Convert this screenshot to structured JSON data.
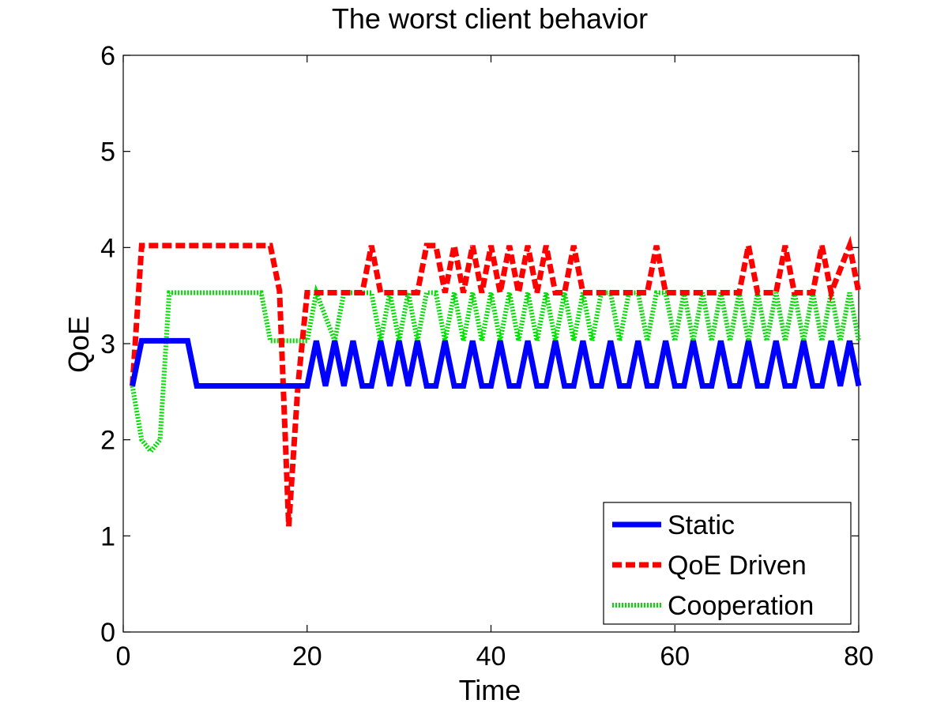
{
  "chart_data": {
    "type": "line",
    "title": "The worst client behavior",
    "xlabel": "Time",
    "ylabel": "QoE",
    "xlim": [
      0,
      80
    ],
    "ylim": [
      0,
      6
    ],
    "xticks": [
      0,
      20,
      40,
      60,
      80
    ],
    "yticks": [
      0,
      1,
      2,
      3,
      4,
      5,
      6
    ],
    "xtick_labels": [
      "0",
      "20",
      "40",
      "60",
      "80"
    ],
    "ytick_labels": [
      "0",
      "1",
      "2",
      "3",
      "4",
      "5",
      "6"
    ],
    "grid": false,
    "legend_position": "bottom-right",
    "series": [
      {
        "name": "Static",
        "color": "#0000ff",
        "style": "solid",
        "x": [
          1,
          2,
          7,
          8,
          20,
          21,
          22,
          23,
          24,
          25,
          26,
          27,
          28,
          29,
          30,
          31,
          32,
          33,
          34,
          35,
          36,
          37,
          38,
          39,
          40,
          41,
          42,
          43,
          44,
          45,
          46,
          47,
          48,
          49,
          50,
          51,
          52,
          53,
          54,
          55,
          56,
          57,
          58,
          59,
          60,
          61,
          62,
          63,
          64,
          65,
          66,
          67,
          68,
          69,
          70,
          71,
          72,
          73,
          74,
          75,
          76,
          77,
          78,
          79,
          80
        ],
        "y": [
          2.56,
          3.03,
          3.03,
          2.56,
          2.56,
          3.03,
          2.56,
          3.03,
          2.56,
          3.03,
          2.56,
          2.56,
          3.03,
          2.56,
          3.03,
          2.56,
          3.03,
          2.56,
          2.56,
          3.03,
          2.56,
          2.56,
          3.03,
          2.56,
          2.56,
          3.03,
          2.56,
          2.56,
          3.03,
          2.56,
          2.56,
          3.03,
          2.56,
          2.56,
          3.03,
          2.56,
          2.56,
          3.03,
          2.56,
          2.56,
          3.03,
          2.56,
          2.56,
          3.03,
          2.56,
          2.56,
          3.03,
          2.56,
          2.56,
          3.03,
          2.56,
          2.56,
          3.03,
          2.56,
          2.56,
          3.03,
          2.56,
          2.56,
          3.03,
          2.56,
          2.56,
          3.03,
          2.56,
          3.03,
          2.56
        ]
      },
      {
        "name": "QoE Driven",
        "color": "#ff0000",
        "style": "dashed",
        "x": [
          1,
          2,
          16,
          17,
          18,
          19,
          20,
          26,
          27,
          28,
          32,
          33,
          34,
          35,
          36,
          37,
          38,
          39,
          40,
          41,
          42,
          43,
          44,
          45,
          46,
          47,
          48,
          49,
          50,
          57,
          58,
          59,
          67,
          68,
          69,
          71,
          72,
          73,
          75,
          76,
          77,
          79,
          80
        ],
        "y": [
          2.56,
          4.02,
          4.02,
          3.55,
          1.1,
          2.56,
          3.53,
          3.53,
          4.02,
          3.53,
          3.53,
          4.02,
          4.02,
          3.53,
          4.02,
          3.53,
          4.02,
          3.53,
          4.02,
          3.53,
          4.02,
          3.53,
          4.02,
          3.53,
          4.02,
          3.53,
          3.53,
          4.02,
          3.53,
          3.53,
          4.02,
          3.53,
          3.53,
          4.02,
          3.53,
          3.53,
          4.02,
          3.53,
          3.53,
          4.02,
          3.53,
          4.02,
          3.53
        ]
      },
      {
        "name": "Cooperation",
        "color": "#00dd00",
        "style": "dotted",
        "x": [
          1,
          2,
          3,
          4,
          5,
          15,
          16,
          20,
          21,
          23,
          24,
          26,
          27,
          28,
          29,
          30,
          31,
          32,
          33,
          34,
          35,
          36,
          37,
          38,
          39,
          40,
          41,
          42,
          43,
          44,
          45,
          46,
          47,
          48,
          49,
          50,
          51,
          52,
          53,
          54,
          55,
          56,
          57,
          58,
          59,
          60,
          61,
          62,
          63,
          64,
          65,
          66,
          67,
          68,
          69,
          70,
          71,
          72,
          73,
          74,
          75,
          76,
          77,
          78,
          79,
          80
        ],
        "y": [
          2.56,
          2.0,
          1.88,
          2.0,
          3.53,
          3.53,
          3.03,
          3.03,
          3.53,
          3.03,
          3.53,
          3.53,
          3.53,
          3.03,
          3.53,
          3.03,
          3.53,
          3.03,
          3.53,
          3.53,
          3.03,
          3.53,
          3.03,
          3.53,
          3.03,
          3.53,
          3.03,
          3.53,
          3.03,
          3.53,
          3.03,
          3.53,
          3.03,
          3.53,
          3.03,
          3.53,
          3.03,
          3.53,
          3.53,
          3.03,
          3.53,
          3.53,
          3.03,
          3.53,
          3.53,
          3.03,
          3.53,
          3.03,
          3.53,
          3.03,
          3.53,
          3.03,
          3.53,
          3.03,
          3.53,
          3.03,
          3.53,
          3.03,
          3.53,
          3.03,
          3.53,
          3.03,
          3.53,
          3.03,
          3.53,
          3.03
        ]
      }
    ]
  }
}
